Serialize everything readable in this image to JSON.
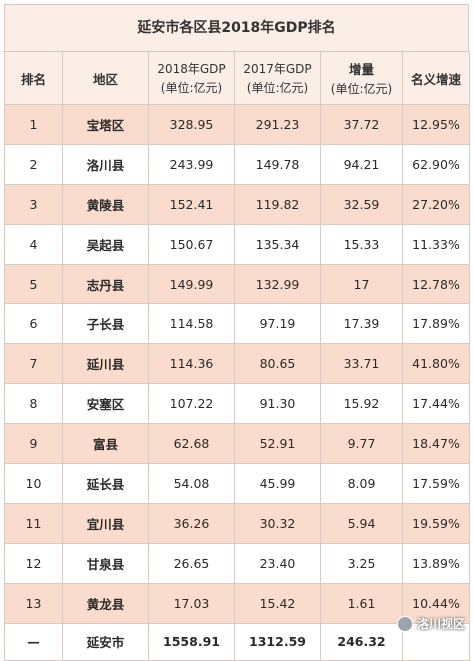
{
  "title": "延安市各区县2018年GDP排名",
  "headers": {
    "rank": "排名",
    "region": "地区",
    "gdp2018_line1": "2018年GDP",
    "gdp2018_line2": "(单位:亿元)",
    "gdp2017_line1": "2017年GDP",
    "gdp2017_line2": "(单位:亿元)",
    "increase_line1": "增量",
    "increase_line2": "(单位:亿元)",
    "growth": "名义增速"
  },
  "rows": [
    {
      "rank": "1",
      "region": "宝塔区",
      "gdp2018": "328.95",
      "gdp2017": "291.23",
      "increase": "37.72",
      "growth": "12.95%"
    },
    {
      "rank": "2",
      "region": "洛川县",
      "gdp2018": "243.99",
      "gdp2017": "149.78",
      "increase": "94.21",
      "growth": "62.90%"
    },
    {
      "rank": "3",
      "region": "黄陵县",
      "gdp2018": "152.41",
      "gdp2017": "119.82",
      "increase": "32.59",
      "growth": "27.20%"
    },
    {
      "rank": "4",
      "region": "吴起县",
      "gdp2018": "150.67",
      "gdp2017": "135.34",
      "increase": "15.33",
      "growth": "11.33%"
    },
    {
      "rank": "5",
      "region": "志丹县",
      "gdp2018": "149.99",
      "gdp2017": "132.99",
      "increase": "17",
      "growth": "12.78%"
    },
    {
      "rank": "6",
      "region": "子长县",
      "gdp2018": "114.58",
      "gdp2017": "97.19",
      "increase": "17.39",
      "growth": "17.89%"
    },
    {
      "rank": "7",
      "region": "延川县",
      "gdp2018": "114.36",
      "gdp2017": "80.65",
      "increase": "33.71",
      "growth": "41.80%"
    },
    {
      "rank": "8",
      "region": "安塞区",
      "gdp2018": "107.22",
      "gdp2017": "91.30",
      "increase": "15.92",
      "growth": "17.44%"
    },
    {
      "rank": "9",
      "region": "富县",
      "gdp2018": "62.68",
      "gdp2017": "52.91",
      "increase": "9.77",
      "growth": "18.47%"
    },
    {
      "rank": "10",
      "region": "延长县",
      "gdp2018": "54.08",
      "gdp2017": "45.99",
      "increase": "8.09",
      "growth": "17.59%"
    },
    {
      "rank": "11",
      "region": "宜川县",
      "gdp2018": "36.26",
      "gdp2017": "30.32",
      "increase": "5.94",
      "growth": "19.59%"
    },
    {
      "rank": "12",
      "region": "甘泉县",
      "gdp2018": "26.65",
      "gdp2017": "23.40",
      "increase": "3.25",
      "growth": "13.89%"
    },
    {
      "rank": "13",
      "region": "黄龙县",
      "gdp2018": "17.03",
      "gdp2017": "15.42",
      "increase": "1.61",
      "growth": "10.44%"
    }
  ],
  "total": {
    "rank": "—",
    "region": "延安市",
    "gdp2018": "1558.91",
    "gdp2017": "1312.59",
    "increase": "246.32",
    "growth": ""
  },
  "watermark": "洛川视区",
  "colors": {
    "header_bg": "#fbeee6",
    "odd_row_bg": "#f9dccd",
    "even_row_bg": "#ffffff",
    "border": "#d9c9bf"
  }
}
